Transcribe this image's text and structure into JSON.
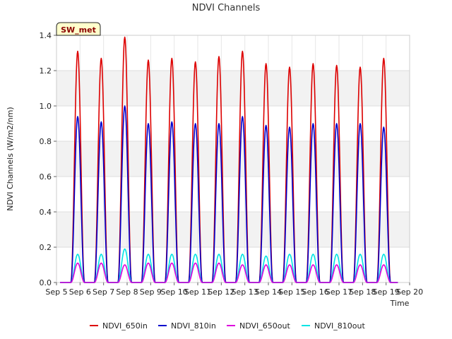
{
  "chart_data": {
    "type": "line",
    "title": "NDVI Channels",
    "xlabel": "Time",
    "ylabel": "NDVI Channels (W/m2/nm)",
    "badge": "SW_met",
    "xlim": [
      5,
      20
    ],
    "ylim": [
      0.0,
      1.4
    ],
    "x_ticks": [
      {
        "value": 5,
        "label": "Sep 5"
      },
      {
        "value": 6,
        "label": "Sep 6"
      },
      {
        "value": 7,
        "label": "Sep 7"
      },
      {
        "value": 8,
        "label": "Sep 8"
      },
      {
        "value": 9,
        "label": "Sep 9"
      },
      {
        "value": 10,
        "label": "Sep 10"
      },
      {
        "value": 11,
        "label": "Sep 11"
      },
      {
        "value": 12,
        "label": "Sep 12"
      },
      {
        "value": 13,
        "label": "Sep 13"
      },
      {
        "value": 14,
        "label": "Sep 14"
      },
      {
        "value": 15,
        "label": "Sep 15"
      },
      {
        "value": 16,
        "label": "Sep 16"
      },
      {
        "value": 17,
        "label": "Sep 17"
      },
      {
        "value": 18,
        "label": "Sep 18"
      },
      {
        "value": 19,
        "label": "Sep 19"
      },
      {
        "value": 20,
        "label": "Sep 20"
      }
    ],
    "y_ticks": [
      {
        "value": 0.0,
        "label": "0.0"
      },
      {
        "value": 0.2,
        "label": "0.2"
      },
      {
        "value": 0.4,
        "label": "0.4"
      },
      {
        "value": 0.6,
        "label": "0.6"
      },
      {
        "value": 0.8,
        "label": "0.8"
      },
      {
        "value": 1.0,
        "label": "1.0"
      },
      {
        "value": 1.2,
        "label": "1.2"
      },
      {
        "value": 1.4,
        "label": "1.4"
      }
    ],
    "day_centers": [
      5.9,
      6.9,
      7.9,
      8.9,
      9.9,
      10.9,
      11.9,
      12.9,
      13.9,
      14.9,
      15.9,
      16.9,
      17.9,
      18.9
    ],
    "series": [
      {
        "name": "NDVI_650in",
        "color": "#dd0000",
        "daily_peaks": [
          1.31,
          1.27,
          1.39,
          1.26,
          1.27,
          1.25,
          1.28,
          1.31,
          1.24,
          1.22,
          1.24,
          1.23,
          1.22,
          1.27
        ]
      },
      {
        "name": "NDVI_810in",
        "color": "#0000cc",
        "daily_peaks": [
          0.94,
          0.91,
          1.0,
          0.9,
          0.91,
          0.9,
          0.9,
          0.94,
          0.89,
          0.88,
          0.9,
          0.9,
          0.9,
          0.88
        ]
      },
      {
        "name": "NDVI_650out",
        "color": "#dd00dd",
        "daily_peaks": [
          0.11,
          0.11,
          0.1,
          0.11,
          0.11,
          0.11,
          0.11,
          0.1,
          0.1,
          0.1,
          0.1,
          0.1,
          0.1,
          0.1
        ]
      },
      {
        "name": "NDVI_810out",
        "color": "#00e5e5",
        "daily_peaks": [
          0.16,
          0.16,
          0.19,
          0.16,
          0.16,
          0.16,
          0.16,
          0.16,
          0.15,
          0.16,
          0.16,
          0.16,
          0.16,
          0.16
        ]
      }
    ]
  }
}
